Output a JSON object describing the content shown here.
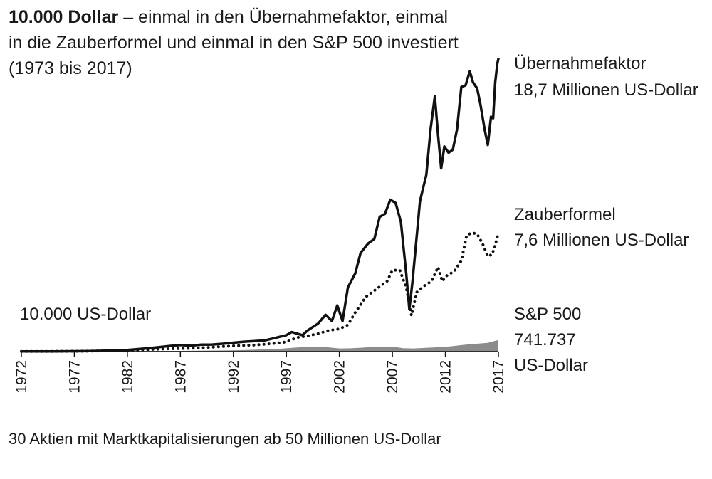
{
  "title": {
    "bold": "10.000 Dollar",
    "rest": " – einmal in den Übernahmefaktor, einmal in die Zauberformel und einmal in den S&P 500 investiert (1973 bis 2017)"
  },
  "labels": {
    "start": "10.000 US-Dollar",
    "series1_name": "Übernahmefaktor",
    "series1_value": "18,7 Millionen US-Dollar",
    "series2_name": "Zauberformel",
    "series2_value": "7,6 Millionen US-Dollar",
    "series3_name": "S&P 500",
    "series3_value": "741.737",
    "series3_unit": "US-Dollar"
  },
  "footnote": "30 Aktien mit Marktkapitalisierungen ab 50 Millionen US-Dollar",
  "colors": {
    "line": "#111111",
    "area": "#8c8c8c",
    "axis": "#111111"
  },
  "chart_data": {
    "type": "line",
    "x_ticks": [
      1972,
      1977,
      1982,
      1987,
      1992,
      1997,
      2002,
      2007,
      2012,
      2017
    ],
    "xlim": [
      1972,
      2017
    ],
    "ylim": [
      0,
      19000000
    ],
    "start_value": 10000,
    "series": [
      {
        "name": "Übernahmefaktor",
        "style": "solid",
        "x": [
          1972,
          1975,
          1978,
          1980,
          1982,
          1984,
          1985,
          1986,
          1987,
          1988,
          1989,
          1990,
          1991,
          1992,
          1993,
          1994,
          1995,
          1996,
          1997,
          1997.5,
          1998,
          1998.5,
          1999,
          2000,
          2000.7,
          2001.3,
          2001.8,
          2002.3,
          2002.8,
          2003.5,
          2004,
          2004.7,
          2005.3,
          2005.8,
          2006.3,
          2006.8,
          2007.3,
          2007.8,
          2008.3,
          2008.6,
          2008.9,
          2009.2,
          2009.6,
          2010.2,
          2010.6,
          2011,
          2011.3,
          2011.6,
          2011.9,
          2012.3,
          2012.7,
          2013.1,
          2013.5,
          2013.9,
          2014.3,
          2014.6,
          2015,
          2015.3,
          2015.7,
          2016,
          2016.3,
          2016.5,
          2016.7,
          2016.9,
          2017
        ],
        "values": [
          10000,
          15000,
          25000,
          60000,
          100000,
          220000,
          280000,
          360000,
          420000,
          380000,
          440000,
          450000,
          500000,
          570000,
          630000,
          670000,
          720000,
          880000,
          1050000,
          1250000,
          1150000,
          1050000,
          1350000,
          1800000,
          2350000,
          1950000,
          2950000,
          1950000,
          4100000,
          5000000,
          6300000,
          6900000,
          7200000,
          8600000,
          8800000,
          9700000,
          9500000,
          8300000,
          5000000,
          2700000,
          4500000,
          6700000,
          9600000,
          11300000,
          14200000,
          16300000,
          13900000,
          11700000,
          13100000,
          12700000,
          12900000,
          14200000,
          16900000,
          17000000,
          17900000,
          17200000,
          16800000,
          15800000,
          14200000,
          13200000,
          15000000,
          14900000,
          17200000,
          18400000,
          18700000
        ]
      },
      {
        "name": "Zauberformel",
        "style": "dotted",
        "x": [
          1972,
          1975,
          1978,
          1980,
          1982,
          1984,
          1986,
          1988,
          1990,
          1992,
          1994,
          1996,
          1997,
          1998,
          1999,
          2000,
          2001,
          2002,
          2002.8,
          2003.5,
          2004.5,
          2005.5,
          2006.5,
          2007,
          2007.7,
          2008.3,
          2008.8,
          2009.3,
          2010,
          2010.7,
          2011.3,
          2011.7,
          2012.2,
          2012.8,
          2013.5,
          2014,
          2014.5,
          2015,
          2015.5,
          2016,
          2016.4,
          2016.7,
          2017
        ],
        "values": [
          10000,
          15000,
          25000,
          50000,
          80000,
          130000,
          180000,
          210000,
          280000,
          370000,
          420000,
          530000,
          620000,
          900000,
          1000000,
          1150000,
          1350000,
          1450000,
          1700000,
          2500000,
          3500000,
          4000000,
          4500000,
          5200000,
          5200000,
          4100000,
          2300000,
          3800000,
          4200000,
          4500000,
          5400000,
          4500000,
          4900000,
          5100000,
          5800000,
          7400000,
          7600000,
          7500000,
          6900000,
          6100000,
          6200000,
          6800000,
          7600000
        ]
      },
      {
        "name": "S&P 500",
        "style": "area",
        "x": [
          1972,
          1977,
          1982,
          1987,
          1992,
          1996,
          1998,
          1999,
          2000,
          2001,
          2002,
          2003,
          2005,
          2007,
          2008,
          2009,
          2010,
          2012,
          2014,
          2016,
          2017
        ],
        "values": [
          10000,
          15000,
          25000,
          45000,
          80000,
          160000,
          260000,
          300000,
          310000,
          270000,
          200000,
          210000,
          280000,
          320000,
          220000,
          200000,
          230000,
          300000,
          450000,
          560000,
          741737
        ]
      }
    ]
  }
}
